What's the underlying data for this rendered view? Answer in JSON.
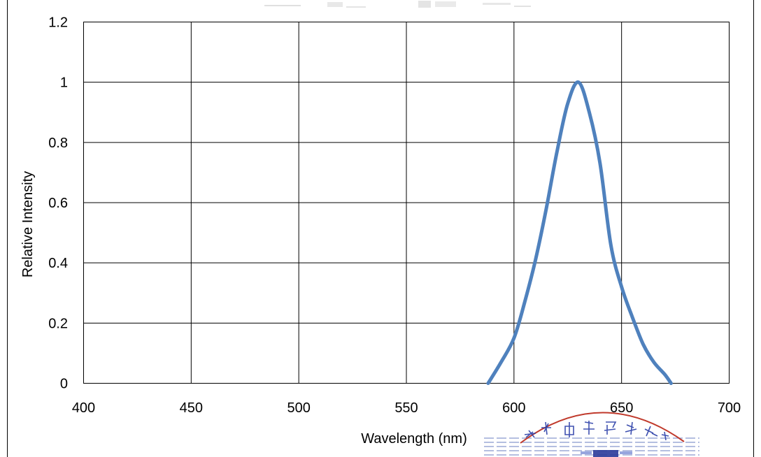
{
  "chart_data": {
    "type": "line",
    "xlabel": "Wavelength (nm)",
    "ylabel": "Relative Intensity",
    "xlim": [
      400,
      700
    ],
    "ylim": [
      0,
      1.2
    ],
    "x_ticks": [
      400,
      450,
      500,
      550,
      600,
      650,
      700
    ],
    "x_tick_labels": [
      "400",
      "450",
      "500",
      "550",
      "600",
      "650",
      "700"
    ],
    "y_ticks": [
      0,
      0.2,
      0.4,
      0.6,
      0.8,
      1,
      1.2
    ],
    "y_tick_labels": [
      "0",
      "0.2",
      "0.4",
      "0.6",
      "0.8",
      "1",
      "1.2"
    ],
    "grid": true,
    "series": [
      {
        "color": "#4F81BD",
        "x": [
          588,
          594,
          600,
          605,
          610,
          615,
          620,
          625,
          630,
          635,
          640,
          645,
          650,
          655,
          660,
          665,
          670,
          673
        ],
        "values": [
          0,
          0.07,
          0.15,
          0.27,
          0.41,
          0.58,
          0.77,
          0.93,
          1.0,
          0.9,
          0.73,
          0.46,
          0.32,
          0.22,
          0.13,
          0.07,
          0.03,
          0
        ]
      }
    ]
  }
}
